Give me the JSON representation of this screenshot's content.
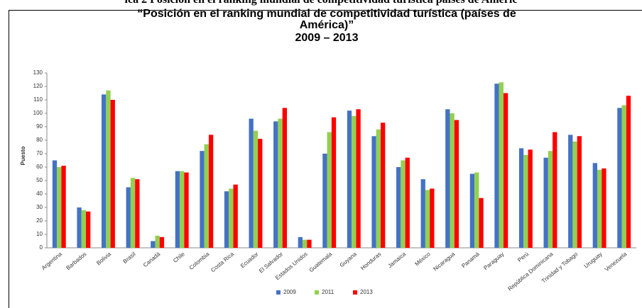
{
  "header": "ica 2 Posición en el ranking mundial de competitividad turística países de Améric",
  "chart_data": {
    "type": "bar",
    "title": "“Posición en el ranking mundial de competitividad turística (países de América)”",
    "subtitle": "2009 – 2013",
    "y_label": "Puesto",
    "categories": [
      "Argentina",
      "Barbados",
      "Bolivia",
      "Brasil",
      "Canadá",
      "Chile",
      "Colombia",
      "Costa Rica",
      "Ecuador",
      "El Salvador",
      "Estados Unidos",
      "Guatemala",
      "Guyana",
      "Honduras",
      "Jamaica",
      "México",
      "Nicaragua",
      "Panamá",
      "Paraguay",
      "Perú",
      "República Dominicana",
      "Trinidad y Tobago",
      "Uruguay",
      "Venezuela"
    ],
    "series": [
      {
        "name": "2009",
        "color": "#4472c4",
        "values": [
          65,
          30,
          114,
          45,
          5,
          57,
          72,
          42,
          96,
          94,
          8,
          70,
          102,
          83,
          60,
          51,
          103,
          55,
          122,
          74,
          67,
          84,
          63,
          104
        ]
      },
      {
        "name": "2011",
        "color": "#92d050",
        "values": [
          60,
          28,
          117,
          52,
          9,
          57,
          77,
          44,
          87,
          96,
          6,
          86,
          98,
          88,
          65,
          43,
          100,
          56,
          123,
          69,
          72,
          79,
          58,
          106
        ]
      },
      {
        "name": "2013",
        "color": "#ff0000",
        "values": [
          61,
          27,
          110,
          51,
          8,
          56,
          84,
          47,
          81,
          104,
          6,
          97,
          103,
          93,
          67,
          44,
          95,
          37,
          115,
          73,
          86,
          83,
          59,
          113
        ]
      }
    ],
    "ylim": [
      0,
      130
    ],
    "yticks": [
      0,
      10,
      20,
      30,
      40,
      50,
      60,
      70,
      80,
      90,
      100,
      110,
      120,
      130
    ],
    "grid": false,
    "legend": "bottom"
  }
}
